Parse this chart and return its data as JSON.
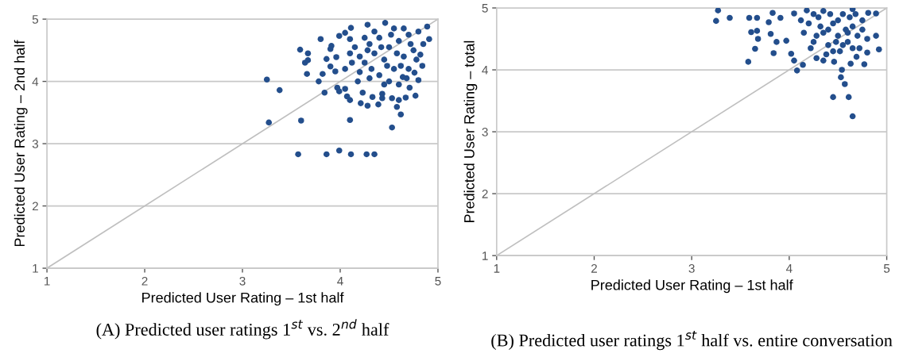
{
  "chart_data": [
    {
      "type": "scatter",
      "xlabel": "Predicted User Rating – 1st half",
      "ylabel": "Predicted User Rating – 2nd half",
      "xlim": [
        1,
        5
      ],
      "ylim": [
        1,
        5
      ],
      "xticks": [
        1,
        2,
        3,
        4,
        5
      ],
      "yticks": [
        1,
        2,
        3,
        4,
        5
      ],
      "grid": "y",
      "annotations": [
        "(A) Predicted user ratings 1$^{st}$ vs. 2$^{nd}$ half"
      ],
      "series": [
        {
          "type": "line",
          "marker": "none",
          "color": "#bfbfbf",
          "x": [
            1,
            5
          ],
          "values": [
            1,
            5
          ]
        },
        {
          "marker": "circle",
          "color": "#234e8c",
          "x": [
            3.25,
            3.38,
            3.27,
            3.59,
            3.67,
            3.64,
            3.67,
            3.66,
            3.6,
            3.8,
            3.78,
            3.82,
            3.84,
            3.9,
            3.91,
            3.86,
            3.9,
            3.95,
            3.96,
            3.99,
            4.05,
            4.11,
            4.1,
            4.28,
            4.46,
            3.97,
            3.99,
            4.05,
            4.07,
            4.1,
            4.1,
            4.21,
            4.28,
            4.23,
            4.33,
            4.39,
            4.43,
            4.43,
            4.53,
            4.53,
            4.6,
            4.58,
            4.62,
            4.67,
            4.71,
            4.77,
            4.8,
            4.84,
            4.91,
            4.89,
            4.82,
            4.76,
            4.64,
            3.57,
            3.86,
            3.99,
            4.11,
            4.27,
            4.35,
            4.15,
            4.2,
            4.25,
            4.3,
            4.35,
            4.4,
            4.45,
            4.5,
            4.55,
            4.6,
            4.65,
            4.7,
            4.75,
            4.8,
            4.2,
            4.3,
            4.4,
            4.5,
            4.6,
            4.7,
            4.35,
            4.55,
            4.65,
            4.72,
            4.25,
            4.12,
            4.18,
            4.42,
            4.48,
            4.58,
            4.68,
            4.78,
            4.05,
            4.1,
            4.32,
            4.52,
            4.62,
            4.85,
            4.45,
            4.28
          ],
          "values": [
            4.03,
            3.86,
            3.34,
            4.51,
            4.45,
            4.3,
            4.34,
            4.12,
            3.37,
            4.68,
            4.0,
            4.12,
            3.82,
            4.52,
            4.57,
            4.36,
            4.24,
            4.16,
            4.39,
            4.73,
            4.78,
            4.86,
            4.68,
            4.91,
            4.94,
            3.9,
            3.84,
            3.88,
            3.76,
            3.7,
            3.38,
            3.65,
            3.61,
            3.82,
            3.75,
            3.63,
            3.73,
            3.8,
            3.26,
            3.73,
            3.7,
            3.59,
            3.47,
            3.74,
            3.9,
            3.77,
            4.02,
            4.25,
            4.68,
            4.88,
            4.43,
            4.14,
            4.07,
            2.83,
            2.83,
            2.89,
            2.83,
            2.83,
            2.83,
            4.55,
            4.4,
            4.3,
            4.6,
            4.45,
            4.7,
            4.35,
            4.55,
            4.2,
            4.65,
            4.4,
            4.75,
            4.5,
            4.8,
            4.15,
            4.05,
            4.1,
            4.0,
            3.95,
            4.2,
            4.8,
            4.85,
            4.85,
            4.6,
            4.7,
            4.3,
            4.0,
            4.55,
            4.25,
            4.45,
            4.05,
            4.35,
            4.2,
            4.45,
            4.2,
            4.75,
            4.25,
            4.6,
            3.95,
            4.5
          ]
        }
      ]
    },
    {
      "type": "scatter",
      "xlabel": "Predicted User Rating – 1st half",
      "ylabel": "Predicted User Rating – total",
      "xlim": [
        1,
        5
      ],
      "ylim": [
        1,
        5
      ],
      "xticks": [
        1,
        2,
        3,
        4,
        5
      ],
      "yticks": [
        1,
        2,
        3,
        4,
        5
      ],
      "grid": "y",
      "annotations": [
        "(B) Predicted user ratings 1$^{st}$ half vs. entire conversation"
      ],
      "series": [
        {
          "type": "line",
          "marker": "none",
          "color": "#bfbfbf",
          "x": [
            1,
            5
          ],
          "values": [
            1,
            5
          ]
        },
        {
          "marker": "circle",
          "color": "#234e8c",
          "x": [
            3.27,
            3.25,
            3.39,
            3.59,
            3.67,
            3.61,
            3.67,
            3.68,
            3.65,
            3.58,
            3.83,
            3.79,
            3.81,
            3.87,
            3.84,
            3.91,
            3.97,
            4.02,
            4.05,
            4.08,
            4.14,
            4.28,
            4.35,
            4.54,
            4.53,
            4.57,
            4.45,
            4.61,
            4.65,
            4.77,
            4.69,
            4.8,
            4.92,
            4.89,
            4.81,
            4.89,
            4.65,
            4.18,
            4.05,
            4.46,
            4.63,
            4.15,
            4.2,
            4.25,
            4.3,
            4.35,
            4.4,
            4.45,
            4.5,
            4.55,
            4.6,
            4.65,
            4.7,
            4.75,
            4.8,
            4.22,
            4.32,
            4.42,
            4.52,
            4.62,
            4.72,
            4.38,
            4.48,
            4.58,
            4.68,
            4.28,
            4.12,
            4.4,
            4.5,
            4.6,
            4.75,
            4.55,
            4.45,
            4.25,
            4.35,
            4.65
          ],
          "values": [
            4.96,
            4.79,
            4.84,
            4.84,
            4.84,
            4.61,
            4.63,
            4.5,
            4.34,
            4.13,
            4.92,
            4.77,
            4.58,
            4.45,
            4.27,
            4.84,
            4.47,
            4.26,
            4.15,
            3.99,
            4.08,
            4.19,
            4.15,
            4.0,
            3.88,
            3.77,
            3.56,
            3.56,
            3.25,
            4.09,
            4.21,
            4.28,
            4.33,
            4.55,
            4.92,
            4.91,
            4.98,
            4.96,
            4.91,
            4.13,
            4.1,
            4.6,
            4.75,
            4.45,
            4.85,
            4.6,
            4.4,
            4.75,
            4.55,
            4.9,
            4.45,
            4.7,
            4.55,
            4.8,
            4.5,
            4.35,
            4.7,
            4.9,
            4.3,
            4.85,
            4.35,
            4.25,
            4.45,
            4.65,
            4.9,
            4.55,
            4.8,
            4.65,
            4.8,
            4.6,
            4.65,
            4.4,
            4.3,
            4.9,
            4.95,
            4.35
          ]
        }
      ]
    }
  ]
}
